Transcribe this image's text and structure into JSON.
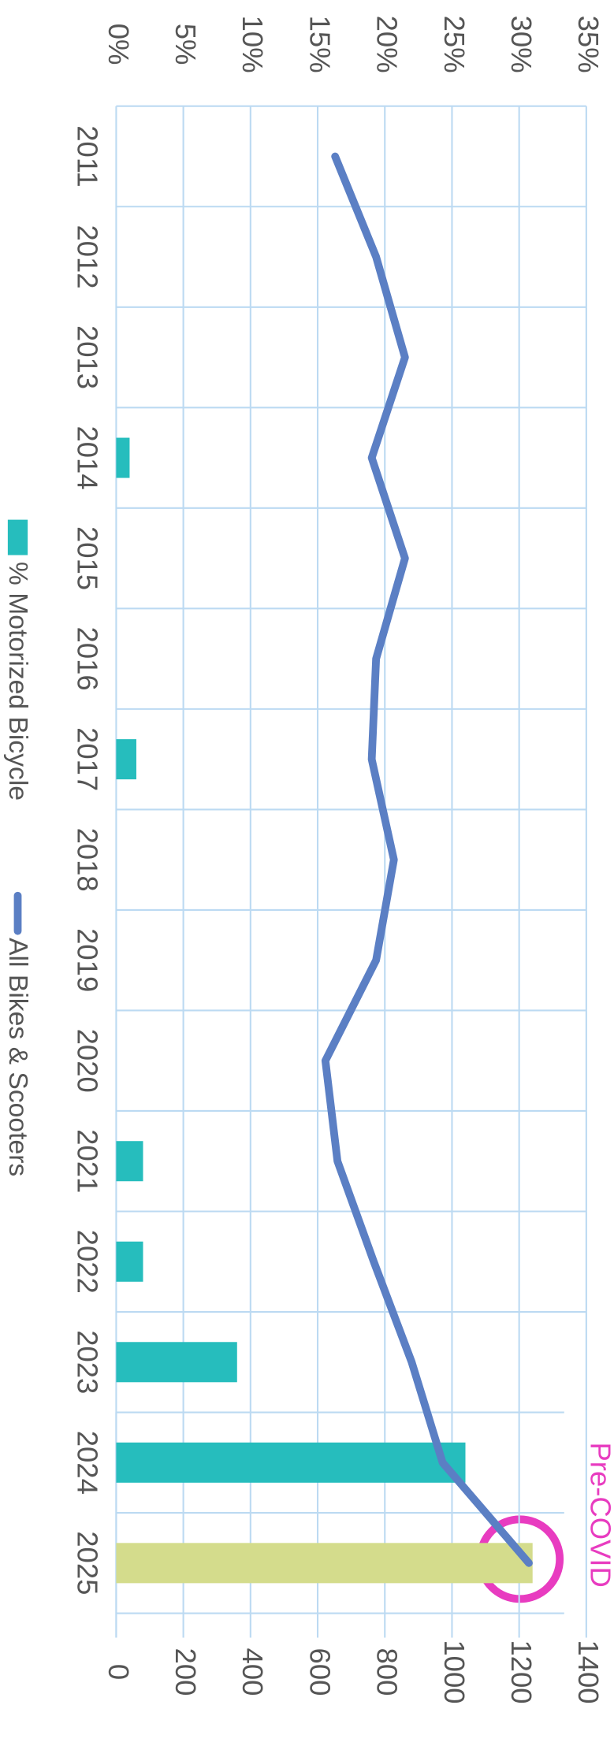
{
  "chart_data": {
    "type": "combo",
    "categories": [
      "2011",
      "2012",
      "2013",
      "2014",
      "2015",
      "2016",
      "2017",
      "2018",
      "2019",
      "2020",
      "2021",
      "2022",
      "2023",
      "2024",
      "2025"
    ],
    "series": [
      {
        "name": "% Motorized Bicycle",
        "type": "bar",
        "color": "#26bdbd",
        "colors": [
          "#26bdbd",
          "#26bdbd",
          "#26bdbd",
          "#26bdbd",
          "#26bdbd",
          "#26bdbd",
          "#26bdbd",
          "#26bdbd",
          "#26bdbd",
          "#26bdbd",
          "#26bdbd",
          "#26bdbd",
          "#26bdbd",
          "#26bdbd",
          "#d4dc8c"
        ],
        "values": [
          0,
          0,
          0,
          1,
          0,
          0,
          1.5,
          0,
          0,
          0,
          2,
          2,
          9,
          26,
          31
        ]
      },
      {
        "name": "All Bikes & Scooters",
        "type": "line",
        "axis": "y2",
        "color": "#5b7fc4",
        "values": [
          652,
          774,
          860,
          761,
          860,
          774,
          761,
          827,
          774,
          623,
          659,
          767,
          880,
          972,
          1229
        ]
      }
    ],
    "ylim": [
      0,
      35
    ],
    "yticks": [
      {
        "value": 0,
        "label": "0%"
      },
      {
        "value": 5,
        "label": "5%"
      },
      {
        "value": 10,
        "label": "10%"
      },
      {
        "value": 15,
        "label": "15%"
      },
      {
        "value": 20,
        "label": "20%"
      },
      {
        "value": 25,
        "label": "25%"
      },
      {
        "value": 30,
        "label": "30%"
      },
      {
        "value": 35,
        "label": "35%"
      }
    ],
    "y2lim": [
      0,
      1400
    ],
    "y2ticks": [
      0,
      200,
      400,
      600,
      800,
      1000,
      1200,
      1400
    ],
    "grid": true,
    "legend": "bottom",
    "annotations": [
      {
        "text": "Pre-COVID",
        "color": "#e83cc0"
      }
    ]
  }
}
